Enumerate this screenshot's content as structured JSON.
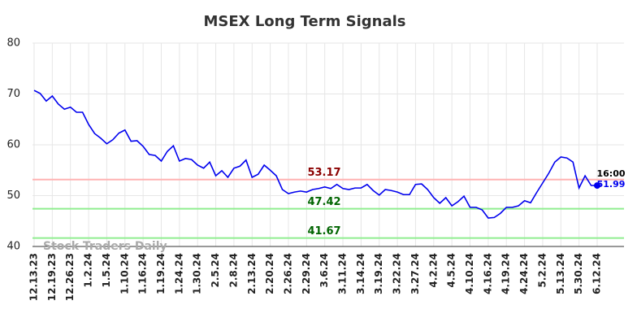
{
  "chart_data": {
    "type": "line",
    "title": "MSEX Long Term Signals",
    "watermark": "Stock Traders Daily",
    "last_time": "16:00",
    "categories": [
      "12.13.23",
      null,
      null,
      "12.19.23",
      null,
      null,
      "12.26.23",
      null,
      null,
      "1.2.24",
      null,
      null,
      "1.5.24",
      null,
      null,
      "1.10.24",
      null,
      null,
      "1.16.24",
      null,
      null,
      "1.19.24",
      null,
      null,
      "1.24.24",
      null,
      null,
      "1.30.24",
      null,
      null,
      "2.5.24",
      null,
      null,
      "2.8.24",
      null,
      null,
      "2.13.24",
      null,
      null,
      "2.20.24",
      null,
      null,
      "2.26.24",
      null,
      null,
      "2.29.24",
      null,
      null,
      "3.6.24",
      null,
      null,
      "3.11.24",
      null,
      null,
      "3.14.24",
      null,
      null,
      "3.19.24",
      null,
      null,
      "3.22.24",
      null,
      null,
      "3.27.24",
      null,
      null,
      "4.2.24",
      null,
      null,
      "4.5.24",
      null,
      null,
      "4.10.24",
      null,
      null,
      "4.16.24",
      null,
      null,
      "4.19.24",
      null,
      null,
      "4.24.24",
      null,
      null,
      "5.2.24",
      null,
      null,
      "5.13.24",
      null,
      null,
      "5.30.24",
      null,
      null,
      "6.12.24"
    ],
    "values": [
      70.7,
      70.1,
      68.6,
      69.6,
      68.0,
      67.0,
      67.4,
      66.4,
      66.4,
      64.0,
      62.2,
      61.3,
      60.2,
      61.0,
      62.3,
      62.9,
      60.7,
      60.8,
      59.7,
      58.1,
      57.9,
      56.8,
      58.7,
      59.8,
      56.8,
      57.3,
      57.1,
      56.0,
      55.4,
      56.6,
      53.9,
      54.9,
      53.6,
      55.4,
      55.8,
      57.0,
      53.6,
      54.2,
      56.0,
      55.0,
      53.9,
      51.2,
      50.4,
      50.7,
      50.9,
      50.7,
      51.2,
      51.4,
      51.7,
      51.4,
      52.2,
      51.4,
      51.2,
      51.5,
      51.5,
      52.2,
      51.0,
      50.1,
      51.2,
      51.0,
      50.7,
      50.2,
      50.2,
      52.2,
      52.3,
      51.2,
      49.6,
      48.5,
      49.6,
      48.0,
      48.8,
      49.9,
      47.7,
      47.7,
      47.2,
      45.6,
      45.7,
      46.5,
      47.7,
      47.7,
      48.0,
      49.0,
      48.6,
      50.6,
      52.5,
      54.4,
      56.6,
      57.6,
      57.4,
      56.6,
      51.5,
      53.9,
      52.0,
      51.99
    ],
    "color": "#0000ee",
    "hlines": [
      {
        "value": 53.17,
        "color": "#ffb3b3",
        "text_color": "#8b0000"
      },
      {
        "value": 47.42,
        "color": "#90ee90",
        "text_color": "#006400"
      },
      {
        "value": 41.67,
        "color": "#90ee90",
        "text_color": "#006400"
      }
    ],
    "ylim": [
      40,
      80
    ],
    "yticks": [
      40,
      50,
      60,
      70,
      80
    ],
    "grid": true
  }
}
